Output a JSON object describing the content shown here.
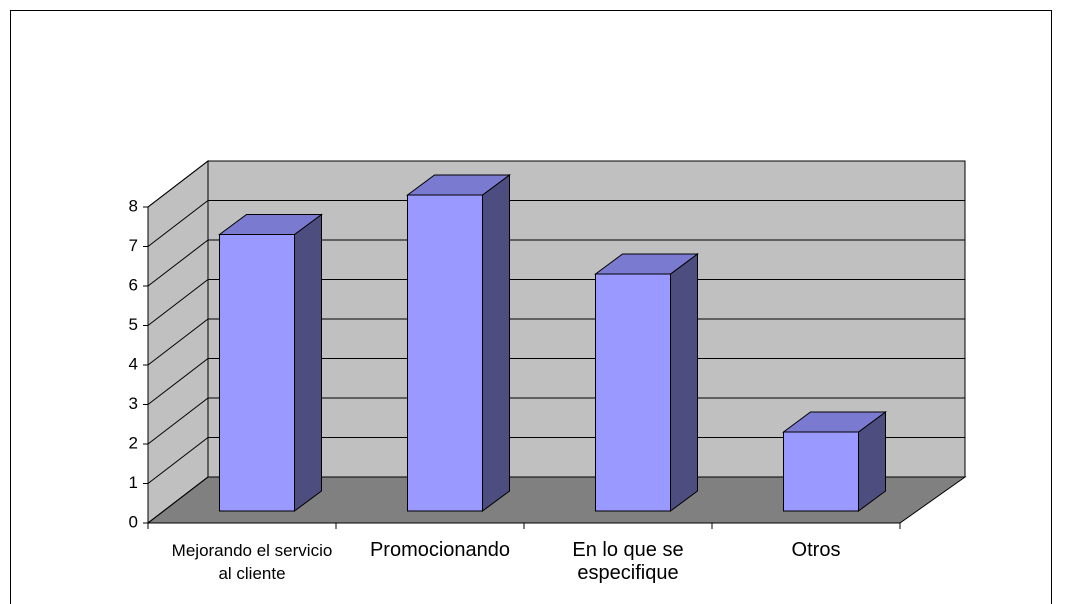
{
  "chart_data": {
    "type": "bar3d",
    "categories": [
      "Mejorando el servicio al cliente",
      "Promocionando",
      "En lo que se especifique",
      "Otros"
    ],
    "values": [
      7,
      8,
      6,
      2
    ],
    "color": "#9999ff",
    "ylim": [
      0,
      8
    ],
    "yticks": [
      0,
      1,
      2,
      3,
      4,
      5,
      6,
      7,
      8
    ],
    "grid": true
  }
}
